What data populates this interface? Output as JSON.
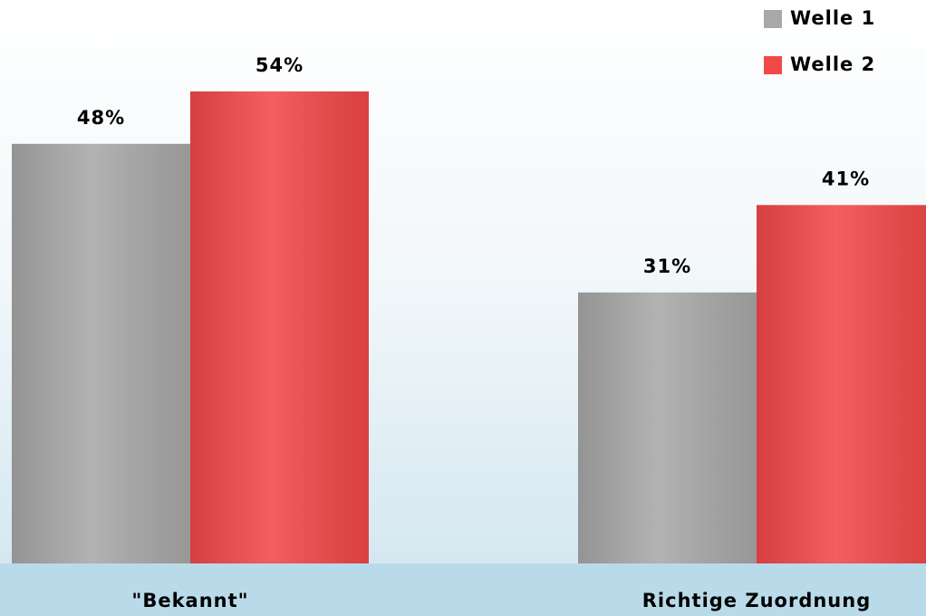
{
  "chart_data": {
    "type": "bar",
    "categories": [
      "\"Bekannt\"",
      "Richtige Zuordnung"
    ],
    "series": [
      {
        "name": "Welle 1",
        "color": "#a8a8a8",
        "values": [
          48,
          31
        ],
        "value_labels": [
          "48%",
          "31%"
        ]
      },
      {
        "name": "Welle 2",
        "color": "#f24848",
        "values": [
          54,
          41
        ],
        "value_labels": [
          "54%",
          "41%"
        ]
      }
    ],
    "ylim": [
      0,
      60
    ],
    "legend": "top-right"
  }
}
